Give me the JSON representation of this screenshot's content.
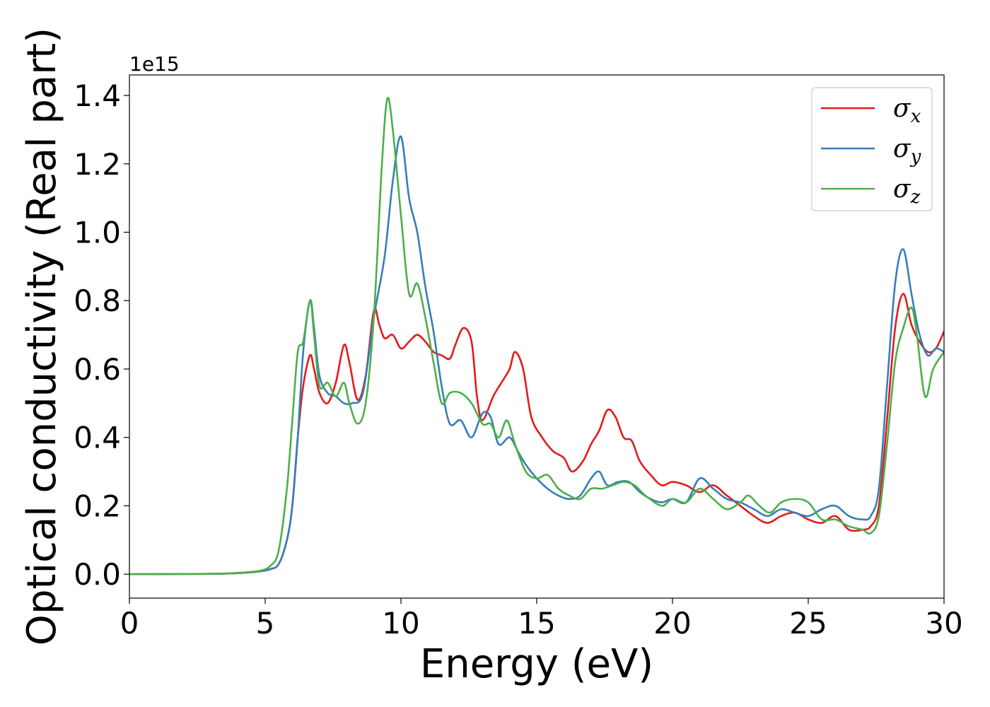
{
  "chart_data": {
    "type": "line",
    "xlabel": "Energy (eV)",
    "ylabel": "Optical conductivity (Real part)",
    "y_offset_label": "1e15",
    "xlim": [
      0,
      30
    ],
    "ylim": [
      -0.07,
      1.46
    ],
    "x_ticks": [
      0,
      5,
      10,
      15,
      20,
      25,
      30
    ],
    "x_tick_labels": [
      "0",
      "5",
      "10",
      "15",
      "20",
      "25",
      "30"
    ],
    "y_ticks": [
      0.0,
      0.2,
      0.4,
      0.6,
      0.8,
      1.0,
      1.2,
      1.4
    ],
    "y_tick_labels": [
      "0.0",
      "0.2",
      "0.4",
      "0.6",
      "0.8",
      "1.0",
      "1.2",
      "1.4"
    ],
    "grid": false,
    "legend_position": "top-right",
    "series": [
      {
        "name": "σx",
        "name_base": "σ",
        "name_sub": "x",
        "color": "#e41a1c",
        "points": [
          [
            0,
            0.0
          ],
          [
            3.0,
            0.001
          ],
          [
            4.0,
            0.003
          ],
          [
            4.8,
            0.008
          ],
          [
            5.2,
            0.015
          ],
          [
            5.5,
            0.03
          ],
          [
            5.8,
            0.1
          ],
          [
            6.0,
            0.2
          ],
          [
            6.2,
            0.4
          ],
          [
            6.4,
            0.55
          ],
          [
            6.65,
            0.64
          ],
          [
            6.8,
            0.6
          ],
          [
            7.0,
            0.53
          ],
          [
            7.3,
            0.5
          ],
          [
            7.6,
            0.56
          ],
          [
            7.9,
            0.67
          ],
          [
            8.1,
            0.62
          ],
          [
            8.4,
            0.51
          ],
          [
            8.7,
            0.58
          ],
          [
            9.0,
            0.77
          ],
          [
            9.2,
            0.73
          ],
          [
            9.4,
            0.69
          ],
          [
            9.7,
            0.7
          ],
          [
            10.0,
            0.66
          ],
          [
            10.3,
            0.68
          ],
          [
            10.6,
            0.7
          ],
          [
            10.9,
            0.68
          ],
          [
            11.2,
            0.65
          ],
          [
            11.5,
            0.64
          ],
          [
            11.8,
            0.63
          ],
          [
            12.0,
            0.67
          ],
          [
            12.3,
            0.72
          ],
          [
            12.6,
            0.68
          ],
          [
            12.8,
            0.52
          ],
          [
            13.0,
            0.45
          ],
          [
            13.4,
            0.52
          ],
          [
            13.7,
            0.56
          ],
          [
            14.0,
            0.6
          ],
          [
            14.2,
            0.65
          ],
          [
            14.5,
            0.6
          ],
          [
            14.8,
            0.46
          ],
          [
            15.2,
            0.4
          ],
          [
            15.6,
            0.36
          ],
          [
            16.0,
            0.34
          ],
          [
            16.3,
            0.3
          ],
          [
            16.7,
            0.33
          ],
          [
            17.0,
            0.38
          ],
          [
            17.3,
            0.42
          ],
          [
            17.6,
            0.48
          ],
          [
            17.9,
            0.46
          ],
          [
            18.2,
            0.4
          ],
          [
            18.5,
            0.39
          ],
          [
            18.8,
            0.33
          ],
          [
            19.2,
            0.29
          ],
          [
            19.6,
            0.26
          ],
          [
            20.0,
            0.27
          ],
          [
            20.5,
            0.26
          ],
          [
            21.0,
            0.24
          ],
          [
            21.5,
            0.26
          ],
          [
            22.0,
            0.23
          ],
          [
            22.5,
            0.2
          ],
          [
            23.0,
            0.17
          ],
          [
            23.5,
            0.15
          ],
          [
            24.0,
            0.17
          ],
          [
            24.5,
            0.18
          ],
          [
            25.0,
            0.16
          ],
          [
            25.5,
            0.15
          ],
          [
            26.0,
            0.17
          ],
          [
            26.5,
            0.13
          ],
          [
            27.0,
            0.13
          ],
          [
            27.3,
            0.14
          ],
          [
            27.6,
            0.2
          ],
          [
            27.9,
            0.45
          ],
          [
            28.2,
            0.72
          ],
          [
            28.5,
            0.82
          ],
          [
            28.8,
            0.73
          ],
          [
            29.1,
            0.68
          ],
          [
            29.4,
            0.65
          ],
          [
            29.7,
            0.66
          ],
          [
            30.0,
            0.71
          ]
        ]
      },
      {
        "name": "σy",
        "name_base": "σ",
        "name_sub": "y",
        "color": "#377eb8",
        "points": [
          [
            0,
            0.0
          ],
          [
            3.0,
            0.001
          ],
          [
            4.0,
            0.003
          ],
          [
            4.8,
            0.008
          ],
          [
            5.2,
            0.015
          ],
          [
            5.5,
            0.03
          ],
          [
            5.8,
            0.1
          ],
          [
            6.0,
            0.2
          ],
          [
            6.2,
            0.4
          ],
          [
            6.4,
            0.65
          ],
          [
            6.65,
            0.8
          ],
          [
            6.8,
            0.72
          ],
          [
            7.0,
            0.58
          ],
          [
            7.3,
            0.53
          ],
          [
            7.6,
            0.52
          ],
          [
            7.9,
            0.5
          ],
          [
            8.2,
            0.5
          ],
          [
            8.6,
            0.53
          ],
          [
            9.0,
            0.75
          ],
          [
            9.4,
            0.93
          ],
          [
            9.7,
            1.15
          ],
          [
            10.0,
            1.28
          ],
          [
            10.3,
            1.1
          ],
          [
            10.6,
            1.0
          ],
          [
            10.9,
            0.84
          ],
          [
            11.2,
            0.71
          ],
          [
            11.5,
            0.55
          ],
          [
            11.8,
            0.44
          ],
          [
            12.2,
            0.45
          ],
          [
            12.6,
            0.4
          ],
          [
            13.0,
            0.47
          ],
          [
            13.3,
            0.46
          ],
          [
            13.6,
            0.38
          ],
          [
            14.0,
            0.4
          ],
          [
            14.3,
            0.36
          ],
          [
            14.6,
            0.32
          ],
          [
            15.0,
            0.28
          ],
          [
            15.4,
            0.25
          ],
          [
            15.8,
            0.23
          ],
          [
            16.2,
            0.22
          ],
          [
            16.6,
            0.23
          ],
          [
            17.0,
            0.28
          ],
          [
            17.3,
            0.3
          ],
          [
            17.6,
            0.26
          ],
          [
            18.0,
            0.27
          ],
          [
            18.4,
            0.27
          ],
          [
            18.8,
            0.24
          ],
          [
            19.2,
            0.22
          ],
          [
            19.6,
            0.21
          ],
          [
            20.0,
            0.22
          ],
          [
            20.5,
            0.21
          ],
          [
            21.0,
            0.28
          ],
          [
            21.5,
            0.25
          ],
          [
            22.0,
            0.22
          ],
          [
            22.5,
            0.21
          ],
          [
            23.0,
            0.19
          ],
          [
            23.5,
            0.17
          ],
          [
            24.0,
            0.19
          ],
          [
            24.5,
            0.18
          ],
          [
            25.0,
            0.17
          ],
          [
            25.5,
            0.19
          ],
          [
            26.0,
            0.2
          ],
          [
            26.5,
            0.17
          ],
          [
            27.0,
            0.16
          ],
          [
            27.3,
            0.17
          ],
          [
            27.6,
            0.25
          ],
          [
            27.9,
            0.55
          ],
          [
            28.2,
            0.85
          ],
          [
            28.5,
            0.95
          ],
          [
            28.8,
            0.82
          ],
          [
            29.1,
            0.7
          ],
          [
            29.4,
            0.64
          ],
          [
            29.7,
            0.66
          ],
          [
            30.0,
            0.65
          ]
        ]
      },
      {
        "name": "σz",
        "name_base": "σ",
        "name_sub": "z",
        "color": "#4daf4a",
        "points": [
          [
            0,
            0.0
          ],
          [
            3.0,
            0.001
          ],
          [
            4.0,
            0.004
          ],
          [
            4.8,
            0.01
          ],
          [
            5.2,
            0.025
          ],
          [
            5.5,
            0.07
          ],
          [
            5.8,
            0.25
          ],
          [
            6.0,
            0.45
          ],
          [
            6.2,
            0.65
          ],
          [
            6.4,
            0.68
          ],
          [
            6.65,
            0.8
          ],
          [
            6.8,
            0.7
          ],
          [
            7.0,
            0.55
          ],
          [
            7.3,
            0.56
          ],
          [
            7.6,
            0.52
          ],
          [
            7.9,
            0.56
          ],
          [
            8.1,
            0.5
          ],
          [
            8.4,
            0.44
          ],
          [
            8.7,
            0.5
          ],
          [
            9.0,
            0.75
          ],
          [
            9.3,
            1.2
          ],
          [
            9.5,
            1.39
          ],
          [
            9.7,
            1.3
          ],
          [
            10.0,
            1.05
          ],
          [
            10.3,
            0.82
          ],
          [
            10.6,
            0.85
          ],
          [
            10.9,
            0.75
          ],
          [
            11.2,
            0.62
          ],
          [
            11.5,
            0.5
          ],
          [
            11.8,
            0.53
          ],
          [
            12.2,
            0.53
          ],
          [
            12.6,
            0.5
          ],
          [
            13.0,
            0.44
          ],
          [
            13.3,
            0.44
          ],
          [
            13.6,
            0.4
          ],
          [
            13.9,
            0.45
          ],
          [
            14.2,
            0.38
          ],
          [
            14.6,
            0.3
          ],
          [
            15.0,
            0.28
          ],
          [
            15.4,
            0.29
          ],
          [
            15.8,
            0.25
          ],
          [
            16.2,
            0.23
          ],
          [
            16.6,
            0.22
          ],
          [
            17.0,
            0.25
          ],
          [
            17.4,
            0.25
          ],
          [
            17.8,
            0.26
          ],
          [
            18.2,
            0.27
          ],
          [
            18.6,
            0.26
          ],
          [
            19.0,
            0.23
          ],
          [
            19.6,
            0.2
          ],
          [
            20.0,
            0.22
          ],
          [
            20.5,
            0.21
          ],
          [
            21.0,
            0.25
          ],
          [
            21.5,
            0.22
          ],
          [
            22.0,
            0.19
          ],
          [
            22.5,
            0.21
          ],
          [
            22.8,
            0.23
          ],
          [
            23.2,
            0.2
          ],
          [
            23.6,
            0.18
          ],
          [
            24.0,
            0.21
          ],
          [
            24.5,
            0.22
          ],
          [
            25.0,
            0.21
          ],
          [
            25.5,
            0.16
          ],
          [
            26.0,
            0.16
          ],
          [
            26.5,
            0.14
          ],
          [
            27.0,
            0.13
          ],
          [
            27.3,
            0.12
          ],
          [
            27.6,
            0.17
          ],
          [
            27.9,
            0.38
          ],
          [
            28.2,
            0.62
          ],
          [
            28.5,
            0.72
          ],
          [
            28.8,
            0.78
          ],
          [
            29.0,
            0.7
          ],
          [
            29.3,
            0.52
          ],
          [
            29.6,
            0.6
          ],
          [
            30.0,
            0.65
          ]
        ]
      }
    ]
  }
}
